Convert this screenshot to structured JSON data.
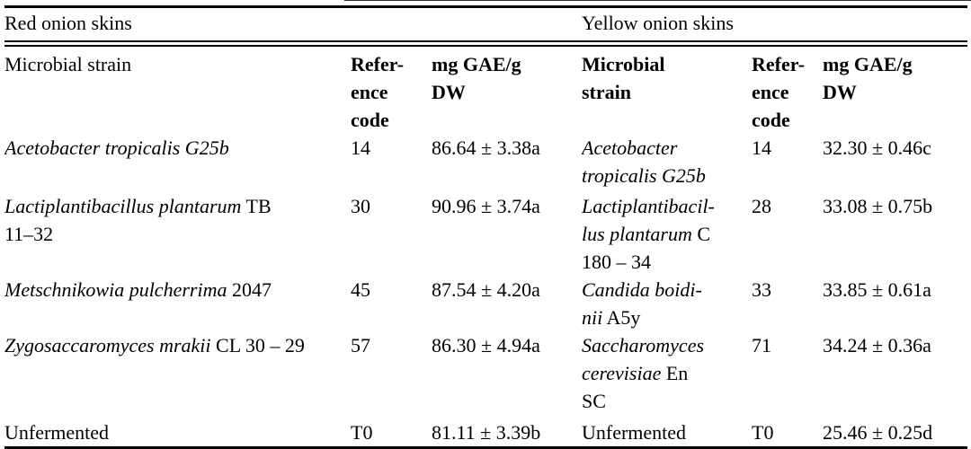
{
  "table": {
    "groups": [
      {
        "label": "Red onion skins"
      },
      {
        "label": "Yellow onion skins"
      }
    ],
    "headers": {
      "red_strain": "Microbial strain",
      "red_ref": "Refer-\nence\ncode",
      "red_value": "mg GAE/g\nDW",
      "yellow_strain": "Microbial\nstrain",
      "yellow_ref": "Refer-\nence\ncode",
      "yellow_value": "mg GAE/g\nDW"
    },
    "rows": [
      {
        "red": {
          "strain": [
            {
              "text": "Acetobacter tropicalis G25b",
              "italic": true
            }
          ],
          "ref_code": "14",
          "value": "86.64 ± 3.38a"
        },
        "yellow": {
          "strain": [
            {
              "text": "Acetobacter\ntropicalis G25b",
              "italic": true
            }
          ],
          "ref_code": "14",
          "value": "32.30 ± 0.46c"
        }
      },
      {
        "red": {
          "strain": [
            {
              "text": "Lactiplantibacillus plantarum",
              "italic": true
            },
            {
              "text": " TB\n11–32",
              "italic": false
            }
          ],
          "ref_code": "30",
          "value": "90.96 ± 3.74a"
        },
        "yellow": {
          "strain": [
            {
              "text": "Lactiplantibacil-\nlus plantarum",
              "italic": true
            },
            {
              "text": " C\n180 – 34",
              "italic": false
            }
          ],
          "ref_code": "28",
          "value": "33.08 ± 0.75b"
        }
      },
      {
        "red": {
          "strain": [
            {
              "text": "Metschnikowia pulcherrima",
              "italic": true
            },
            {
              "text": " 2047",
              "italic": false
            }
          ],
          "ref_code": "45",
          "value": "87.54 ± 4.20a"
        },
        "yellow": {
          "strain": [
            {
              "text": "Candida boidi-\nnii",
              "italic": true
            },
            {
              "text": " A5y",
              "italic": false
            }
          ],
          "ref_code": "33",
          "value": "33.85 ± 0.61a"
        }
      },
      {
        "red": {
          "strain": [
            {
              "text": "Zygosaccaromyces mrakii",
              "italic": true
            },
            {
              "text": " CL 30 – 29",
              "italic": false
            }
          ],
          "ref_code": "57",
          "value": "86.30 ± 4.94a"
        },
        "yellow": {
          "strain": [
            {
              "text": "Saccharomyces\ncerevisiae",
              "italic": true
            },
            {
              "text": " En\nSC",
              "italic": false
            }
          ],
          "ref_code": "71",
          "value": "34.24 ± 0.36a"
        }
      },
      {
        "red": {
          "strain": [
            {
              "text": "Unfermented",
              "italic": false
            }
          ],
          "ref_code": "T0",
          "value": "81.11 ± 3.39b"
        },
        "yellow": {
          "strain": [
            {
              "text": "Unfermented",
              "italic": false
            }
          ],
          "ref_code": "T0",
          "value": "25.46 ± 0.25d"
        }
      }
    ]
  },
  "chart_data": {
    "type": "table",
    "groups": [
      "Red onion skins",
      "Yellow onion skins"
    ],
    "columns": [
      "Microbial strain",
      "Reference code",
      "mg GAE/g DW"
    ],
    "red_onion_rows": [
      [
        "Acetobacter tropicalis G25b",
        "14",
        "86.64 ± 3.38a"
      ],
      [
        "Lactiplantibacillus plantarum TB 11–32",
        "30",
        "90.96 ± 3.74a"
      ],
      [
        "Metschnikowia pulcherrima 2047",
        "45",
        "87.54 ± 4.20a"
      ],
      [
        "Zygosaccaromyces mrakii CL 30 – 29",
        "57",
        "86.30 ± 4.94a"
      ],
      [
        "Unfermented",
        "T0",
        "81.11 ± 3.39b"
      ]
    ],
    "yellow_onion_rows": [
      [
        "Acetobacter tropicalis G25b",
        "14",
        "32.30 ± 0.46c"
      ],
      [
        "Lactiplantibacillus plantarum C 180 – 34",
        "28",
        "33.08 ± 0.75b"
      ],
      [
        "Candida boidinii A5y",
        "33",
        "33.85 ± 0.61a"
      ],
      [
        "Saccharomyces cerevisiae En SC",
        "71",
        "34.24 ± 0.36a"
      ],
      [
        "Unfermented",
        "T0",
        "25.46 ± 0.25d"
      ]
    ]
  }
}
